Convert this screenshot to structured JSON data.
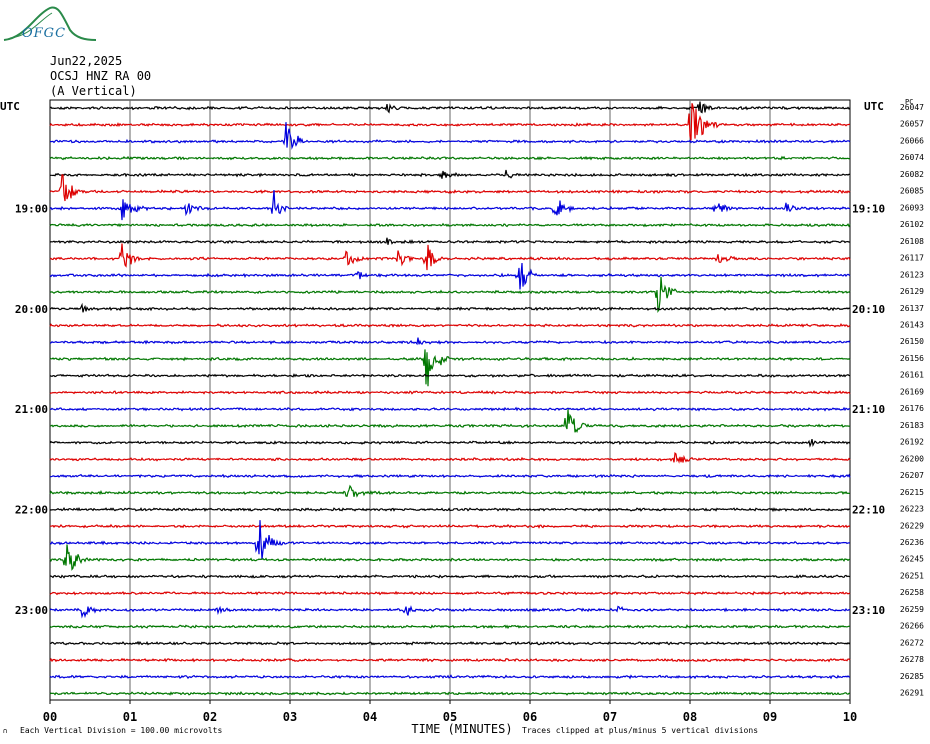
{
  "header": {
    "logo_text": "OFGC",
    "date": "Jun22,2025",
    "station": "OCSJ HNZ RA 00",
    "component": "(A Vertical)"
  },
  "colors": {
    "trace_cycle": [
      "#000000",
      "#dd0000",
      "#0000dd",
      "#007700"
    ],
    "grid": "#666666",
    "logo": "#2a8a4a"
  },
  "chart_data": {
    "type": "line",
    "title": "",
    "left_tz": "UTC",
    "right_tz": "UTC",
    "right_top_label": "PC",
    "xlabel": "TIME (MINUTES)",
    "xlim": [
      0,
      10
    ],
    "x_ticks": [
      "00",
      "01",
      "02",
      "03",
      "04",
      "05",
      "06",
      "07",
      "08",
      "09",
      "10"
    ],
    "trace_minutes": 10,
    "hour_labels_left": [
      {
        "row": 6,
        "label": "19:00"
      },
      {
        "row": 12,
        "label": "20:00"
      },
      {
        "row": 18,
        "label": "21:00"
      },
      {
        "row": 24,
        "label": "22:00"
      },
      {
        "row": 30,
        "label": "23:00"
      }
    ],
    "hour_labels_right": [
      {
        "row": 6,
        "label": "19:10"
      },
      {
        "row": 12,
        "label": "20:10"
      },
      {
        "row": 18,
        "label": "21:10"
      },
      {
        "row": 24,
        "label": "22:10"
      },
      {
        "row": 30,
        "label": "23:10"
      }
    ],
    "trace_values": [
      "26047",
      "26057",
      "26066",
      "26074",
      "26082",
      "26085",
      "26093",
      "26102",
      "26108",
      "26117",
      "26123",
      "26129",
      "26137",
      "26143",
      "26150",
      "26156",
      "26161",
      "26169",
      "26176",
      "26183",
      "26192",
      "26200",
      "26207",
      "26215",
      "26223",
      "26229",
      "26236",
      "26245",
      "26251",
      "26258",
      "26259",
      "26266",
      "26272",
      "26278",
      "26285",
      "26291"
    ],
    "events": [
      {
        "row": 0,
        "x": 4.2,
        "amp": 0.4,
        "dur": 0.3
      },
      {
        "row": 0,
        "x": 8.1,
        "amp": 0.6,
        "dur": 0.3
      },
      {
        "row": 1,
        "x": 8.0,
        "amp": 2.5,
        "dur": 0.35
      },
      {
        "row": 2,
        "x": 2.95,
        "amp": 1.6,
        "dur": 0.3
      },
      {
        "row": 4,
        "x": 4.9,
        "amp": 0.3,
        "dur": 0.5
      },
      {
        "row": 4,
        "x": 5.7,
        "amp": 0.4,
        "dur": 0.2
      },
      {
        "row": 5,
        "x": 0.15,
        "amp": 1.8,
        "dur": 0.3
      },
      {
        "row": 6,
        "x": 0.9,
        "amp": 0.8,
        "dur": 0.4
      },
      {
        "row": 6,
        "x": 1.7,
        "amp": 0.5,
        "dur": 0.4
      },
      {
        "row": 6,
        "x": 2.8,
        "amp": 1.3,
        "dur": 0.2
      },
      {
        "row": 6,
        "x": 6.3,
        "amp": 1.2,
        "dur": 0.3
      },
      {
        "row": 6,
        "x": 8.3,
        "amp": 0.5,
        "dur": 0.4
      },
      {
        "row": 6,
        "x": 9.2,
        "amp": 0.4,
        "dur": 0.3
      },
      {
        "row": 8,
        "x": 4.2,
        "amp": 0.4,
        "dur": 0.2
      },
      {
        "row": 9,
        "x": 0.9,
        "amp": 1.2,
        "dur": 0.3
      },
      {
        "row": 9,
        "x": 3.7,
        "amp": 0.6,
        "dur": 0.3
      },
      {
        "row": 9,
        "x": 4.35,
        "amp": 0.8,
        "dur": 0.25
      },
      {
        "row": 9,
        "x": 4.7,
        "amp": 1.2,
        "dur": 0.25
      },
      {
        "row": 9,
        "x": 8.35,
        "amp": 0.6,
        "dur": 0.3
      },
      {
        "row": 10,
        "x": 3.85,
        "amp": 0.4,
        "dur": 0.2
      },
      {
        "row": 10,
        "x": 5.85,
        "amp": 1.6,
        "dur": 0.3
      },
      {
        "row": 11,
        "x": 7.6,
        "amp": 1.5,
        "dur": 0.3
      },
      {
        "row": 12,
        "x": 0.4,
        "amp": 0.4,
        "dur": 0.2
      },
      {
        "row": 14,
        "x": 4.6,
        "amp": 0.4,
        "dur": 0.3
      },
      {
        "row": 15,
        "x": 4.7,
        "amp": 2.5,
        "dur": 0.3
      },
      {
        "row": 19,
        "x": 6.45,
        "amp": 1.8,
        "dur": 0.3
      },
      {
        "row": 20,
        "x": 9.5,
        "amp": 0.4,
        "dur": 0.15
      },
      {
        "row": 21,
        "x": 7.8,
        "amp": 0.5,
        "dur": 0.4
      },
      {
        "row": 23,
        "x": 3.7,
        "amp": 0.6,
        "dur": 0.5
      },
      {
        "row": 26,
        "x": 2.6,
        "amp": 2.0,
        "dur": 0.3
      },
      {
        "row": 27,
        "x": 0.2,
        "amp": 1.5,
        "dur": 0.3
      },
      {
        "row": 30,
        "x": 0.4,
        "amp": 0.6,
        "dur": 0.3
      },
      {
        "row": 30,
        "x": 2.1,
        "amp": 0.3,
        "dur": 0.3
      },
      {
        "row": 30,
        "x": 4.45,
        "amp": 0.5,
        "dur": 0.2
      },
      {
        "row": 30,
        "x": 7.1,
        "amp": 0.3,
        "dur": 0.3
      }
    ]
  },
  "footer": {
    "left": "Each Vertical Division =  100.00 microvolts",
    "right": "Traces clipped at plus/minus 5 vertical divisions"
  }
}
